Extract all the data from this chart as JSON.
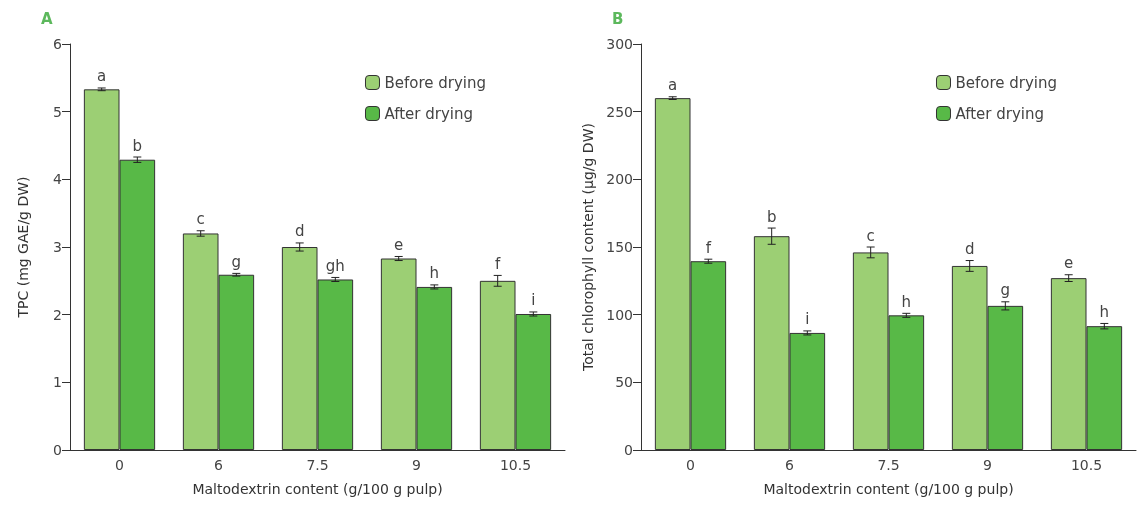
{
  "chart_data": [
    {
      "type": "bar",
      "title": "A",
      "xlabel": "Maltodextrin content (g/100 g pulp)",
      "ylabel": "TPC (mg GAE/g DW)",
      "categories": [
        "0",
        "6",
        "7.5",
        "9",
        "10.5"
      ],
      "ylim": [
        0,
        6
      ],
      "yticks": [
        0,
        1,
        2,
        3,
        4,
        5,
        6
      ],
      "grid": false,
      "legend": "top right",
      "series": [
        {
          "name": "Before drying",
          "color": "#9ccf74",
          "values": [
            5.33,
            3.2,
            3.0,
            2.83,
            2.5
          ],
          "errors": [
            0.02,
            0.04,
            0.06,
            0.03,
            0.08
          ],
          "value_labels": [
            "a",
            "c",
            "d",
            "e",
            "f"
          ]
        },
        {
          "name": "After drying",
          "color": "#58b947",
          "values": [
            4.29,
            2.59,
            2.52,
            2.41,
            2.01
          ],
          "errors": [
            0.04,
            0.02,
            0.03,
            0.03,
            0.03
          ],
          "value_labels": [
            "b",
            "g",
            "gh",
            "h",
            "i"
          ]
        }
      ]
    },
    {
      "type": "bar",
      "title": "B",
      "xlabel": "Maltodextrin content (g/100 g pulp)",
      "ylabel": "Total chlorophyll content (μg/g DW)",
      "categories": [
        "0",
        "6",
        "7.5",
        "9",
        "10.5"
      ],
      "ylim": [
        0,
        300
      ],
      "yticks": [
        0,
        50,
        100,
        150,
        200,
        250,
        300
      ],
      "grid": false,
      "legend": "top right",
      "series": [
        {
          "name": "Before drying",
          "color": "#9ccf74",
          "values": [
            260,
            158,
            146,
            136,
            127
          ],
          "errors": [
            1,
            6,
            4,
            4,
            2.5
          ],
          "value_labels": [
            "a",
            "b",
            "c",
            "d",
            "e"
          ]
        },
        {
          "name": "After drying",
          "color": "#58b947",
          "values": [
            139.5,
            86.5,
            99.5,
            106.5,
            91.5
          ],
          "errors": [
            1.5,
            1.5,
            1.5,
            3,
            2
          ],
          "value_labels": [
            "f",
            "i",
            "h",
            "g",
            "h"
          ]
        }
      ]
    }
  ]
}
